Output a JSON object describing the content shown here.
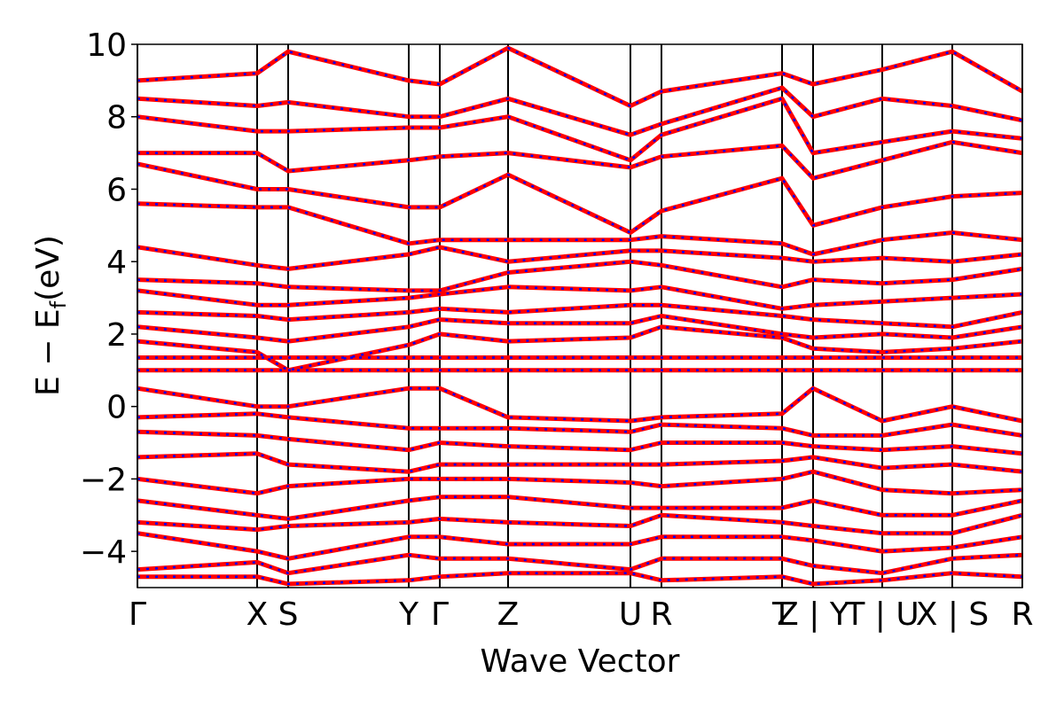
{
  "chart_data": {
    "type": "line",
    "xlabel": "Wave Vector",
    "ylabel": {
      "main": "E − E",
      "sub": "f",
      "unit": "(eV)"
    },
    "xlim": [
      0,
      9.98
    ],
    "ylim": [
      -5,
      10
    ],
    "yticks": [
      {
        "value": -4,
        "label": "−4"
      },
      {
        "value": -2,
        "label": "−2"
      },
      0,
      2,
      4,
      6,
      8,
      10
    ],
    "xticks": [
      {
        "value": 0,
        "label": "Γ"
      },
      {
        "value": 1.35,
        "label": "X"
      },
      {
        "value": 1.7,
        "label": "S"
      },
      {
        "value": 3.06,
        "label": "Y"
      },
      {
        "value": 3.41,
        "label": "Γ"
      },
      {
        "value": 4.18,
        "label": "Z"
      },
      {
        "value": 5.56,
        "label": "U"
      },
      {
        "value": 5.91,
        "label": "R"
      },
      {
        "value": 7.27,
        "label": "T"
      },
      {
        "value": 7.62,
        "label": "Z | Y"
      },
      {
        "value": 8.4,
        "label": "T | U"
      },
      {
        "value": 9.19,
        "label": "X | S"
      },
      {
        "value": 9.98,
        "label": "R"
      }
    ],
    "x": [
      0,
      1.35,
      1.7,
      3.06,
      3.41,
      4.18,
      5.56,
      5.91,
      7.27,
      7.62,
      8.4,
      9.19,
      9.98
    ],
    "series": [
      {
        "color": "#ff0000",
        "linestyle": "solid"
      },
      {
        "color": "#0000ff",
        "linestyle": "dotted"
      }
    ],
    "bands": [
      [
        1.0,
        1.0,
        1.0,
        1.0,
        1.0,
        1.0,
        1.0,
        1.0,
        1.0,
        1.0,
        1.0,
        1.0,
        1.0
      ],
      [
        1.35,
        1.35,
        1.35,
        1.35,
        1.35,
        1.35,
        1.35,
        1.35,
        1.35,
        1.35,
        1.35,
        1.35,
        1.35
      ],
      [
        1.8,
        1.5,
        1.0,
        1.7,
        2.0,
        1.8,
        1.9,
        2.2,
        1.9,
        1.6,
        1.5,
        1.6,
        1.8
      ],
      [
        2.2,
        1.9,
        1.8,
        2.2,
        2.4,
        2.3,
        2.3,
        2.5,
        2.0,
        1.9,
        2.0,
        1.9,
        2.2
      ],
      [
        2.6,
        2.5,
        2.4,
        2.6,
        2.7,
        2.6,
        2.8,
        2.8,
        2.5,
        2.4,
        2.3,
        2.2,
        2.6
      ],
      [
        3.2,
        2.8,
        2.8,
        3.0,
        3.1,
        3.3,
        3.2,
        3.3,
        2.7,
        2.8,
        2.9,
        3.0,
        3.1
      ],
      [
        3.5,
        3.4,
        3.3,
        3.2,
        3.2,
        3.7,
        4.0,
        3.9,
        3.3,
        3.5,
        3.4,
        3.5,
        3.8
      ],
      [
        4.4,
        3.9,
        3.8,
        4.2,
        4.4,
        4.0,
        4.3,
        4.3,
        4.1,
        4.0,
        4.1,
        4.0,
        4.2
      ],
      [
        5.6,
        5.5,
        5.5,
        4.5,
        4.6,
        4.6,
        4.6,
        4.7,
        4.5,
        4.2,
        4.6,
        4.8,
        4.6
      ],
      [
        6.7,
        6.0,
        6.0,
        5.5,
        5.5,
        6.4,
        4.8,
        5.4,
        6.3,
        5.0,
        5.5,
        5.8,
        5.9
      ],
      [
        7.0,
        7.0,
        6.5,
        6.8,
        6.9,
        7.0,
        6.6,
        6.9,
        7.2,
        6.3,
        6.8,
        7.3,
        7.0
      ],
      [
        8.0,
        7.6,
        7.6,
        7.7,
        7.7,
        8.0,
        6.8,
        7.5,
        8.5,
        7.0,
        7.3,
        7.6,
        7.4
      ],
      [
        8.5,
        8.3,
        8.4,
        8.0,
        8.0,
        8.5,
        7.5,
        7.8,
        8.8,
        8.0,
        8.5,
        8.3,
        7.9
      ],
      [
        9.0,
        9.2,
        9.8,
        9.0,
        8.9,
        9.9,
        8.3,
        8.7,
        9.2,
        8.9,
        9.3,
        9.8,
        8.7
      ],
      [
        0.5,
        0.0,
        0.0,
        0.5,
        0.5,
        -0.3,
        -0.4,
        -0.3,
        -0.2,
        0.5,
        -0.4,
        0.0,
        -0.4
      ],
      [
        -0.3,
        -0.2,
        -0.3,
        -0.6,
        -0.6,
        -0.6,
        -0.7,
        -0.5,
        -0.6,
        -0.8,
        -0.8,
        -0.5,
        -0.8
      ],
      [
        -0.7,
        -0.8,
        -0.9,
        -1.2,
        -1.0,
        -1.1,
        -1.2,
        -1.0,
        -1.0,
        -1.1,
        -1.2,
        -1.1,
        -1.3
      ],
      [
        -1.4,
        -1.3,
        -1.6,
        -1.8,
        -1.6,
        -1.6,
        -1.6,
        -1.6,
        -1.5,
        -1.4,
        -1.7,
        -1.6,
        -1.8
      ],
      [
        -2.0,
        -2.4,
        -2.2,
        -2.0,
        -2.0,
        -2.0,
        -2.1,
        -2.2,
        -2.0,
        -1.8,
        -2.3,
        -2.4,
        -2.3
      ],
      [
        -2.6,
        -3.0,
        -3.1,
        -2.6,
        -2.5,
        -2.5,
        -2.8,
        -2.8,
        -2.8,
        -2.6,
        -3.0,
        -3.0,
        -2.6
      ],
      [
        -3.2,
        -3.4,
        -3.3,
        -3.2,
        -3.1,
        -3.2,
        -3.3,
        -3.0,
        -3.2,
        -3.3,
        -3.5,
        -3.5,
        -3.0
      ],
      [
        -3.5,
        -4.0,
        -4.2,
        -3.6,
        -3.6,
        -3.8,
        -3.8,
        -3.6,
        -3.6,
        -3.7,
        -4.0,
        -3.9,
        -3.6
      ],
      [
        -4.5,
        -4.3,
        -4.6,
        -4.1,
        -4.2,
        -4.2,
        -4.5,
        -4.2,
        -4.2,
        -4.4,
        -4.6,
        -4.2,
        -4.1
      ],
      [
        -4.7,
        -4.7,
        -4.9,
        -4.8,
        -4.7,
        -4.6,
        -4.6,
        -4.8,
        -4.7,
        -4.9,
        -4.8,
        -4.6,
        -4.7
      ]
    ]
  }
}
